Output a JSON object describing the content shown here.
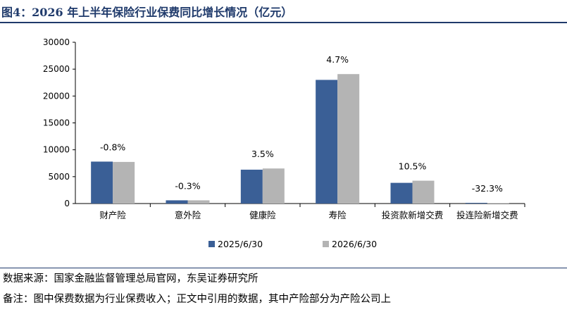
{
  "title": "图4：2026 年上半年保险行业保费同比增长情况（亿元）",
  "source_note": "数据来源：国家金融监督管理总局官网，东吴证券研究所",
  "remark_note": "备注：图中保费数据为行业保费收入；正文中引用的数据，其中产险部分为产险公司上",
  "colors": {
    "series1": "#3a5f96",
    "series2": "#b4b4b4",
    "title": "#1f3a6b"
  },
  "chart_data": {
    "type": "bar",
    "categories": [
      "财产险",
      "意外险",
      "健康险",
      "寿险",
      "投资款新增交费",
      "投连险新增交费"
    ],
    "series": [
      {
        "name": "2025/6/30",
        "values": [
          7800,
          600,
          6300,
          23000,
          3850,
          130
        ]
      },
      {
        "name": "2026/6/30",
        "values": [
          7740,
          598,
          6520,
          24080,
          4250,
          88
        ]
      }
    ],
    "annotations": [
      "-0.8%",
      "-0.3%",
      "3.5%",
      "4.7%",
      "10.5%",
      "-32.3%"
    ],
    "yticks": [
      "0",
      "5000",
      "10000",
      "15000",
      "20000",
      "25000",
      "30000"
    ],
    "ylim": [
      0,
      30000
    ],
    "legend_position": "bottom",
    "grid": false
  }
}
